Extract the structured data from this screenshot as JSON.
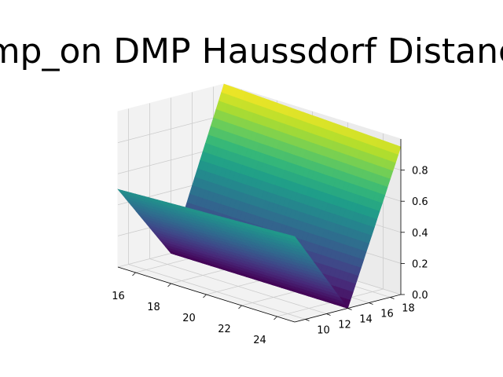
{
  "chart_data": {
    "type": "surface",
    "title": "dmp_on DMP Haussdorf Distance",
    "xlabel": "",
    "ylabel": "",
    "zlabel": "",
    "x_range": [
      15,
      25
    ],
    "y_range": [
      9,
      19
    ],
    "z_range": [
      0,
      1
    ],
    "x_ticks": [
      16,
      18,
      20,
      22,
      24
    ],
    "y_ticks": [
      10,
      12,
      14,
      16,
      18
    ],
    "z_ticks": [
      0.0,
      0.2,
      0.4,
      0.6,
      0.8
    ],
    "x_tick_labels": [
      "16",
      "18",
      "20",
      "22",
      "24"
    ],
    "y_tick_labels": [
      "10",
      "12",
      "14",
      "16",
      "18"
    ],
    "z_tick_labels": [
      "0.0",
      "0.2",
      "0.4",
      "0.6",
      "0.8"
    ],
    "surface": {
      "description_points": [
        {
          "x": 15,
          "y": 9,
          "z": 0.5
        },
        {
          "x": 15,
          "y": 14,
          "z": 0.0
        },
        {
          "x": 15,
          "y": 19,
          "z": 1.0
        },
        {
          "x": 25,
          "y": 9,
          "z": 0.55
        },
        {
          "x": 25,
          "y": 14,
          "z": 0.0
        },
        {
          "x": 25,
          "y": 19,
          "z": 0.95
        }
      ]
    },
    "colormap": "viridis",
    "grid": true
  }
}
